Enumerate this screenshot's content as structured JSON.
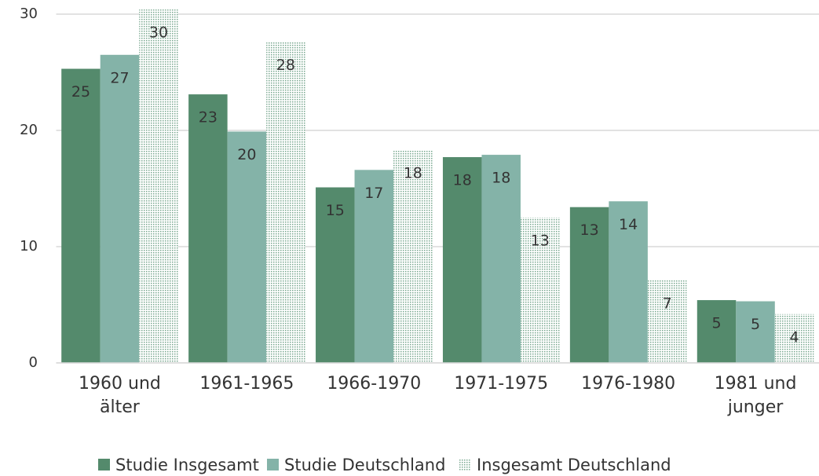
{
  "chart_data": {
    "type": "bar",
    "categories": [
      "1960 und älter",
      "1961-1965",
      "1966-1970",
      "1971-1975",
      "1976-1980",
      "1981 und junger"
    ],
    "series": [
      {
        "name": "Studie Insgesamt",
        "color": "#548a6c",
        "values": [
          25.3,
          23.1,
          15.1,
          17.7,
          13.4,
          5.4
        ],
        "value_labels": [
          "25",
          "23",
          "15",
          "18",
          "13",
          "5"
        ]
      },
      {
        "name": "Studie Deutschland",
        "color": "#84b3a8",
        "values": [
          26.5,
          19.9,
          16.6,
          17.9,
          13.9,
          5.3
        ],
        "value_labels": [
          "27",
          "20",
          "17",
          "18",
          "14",
          "5"
        ]
      },
      {
        "name": "Insgesamt Deutschland",
        "color": "#7aa890",
        "pattern": "dotted",
        "values": [
          30.4,
          27.6,
          18.3,
          12.5,
          7.1,
          4.2
        ],
        "value_labels": [
          "30",
          "28",
          "18",
          "13",
          "7",
          "4"
        ]
      }
    ],
    "ylim": [
      0,
      30
    ],
    "yticks": [
      0,
      10,
      20,
      30
    ],
    "grid": true,
    "legend": "bottom"
  }
}
